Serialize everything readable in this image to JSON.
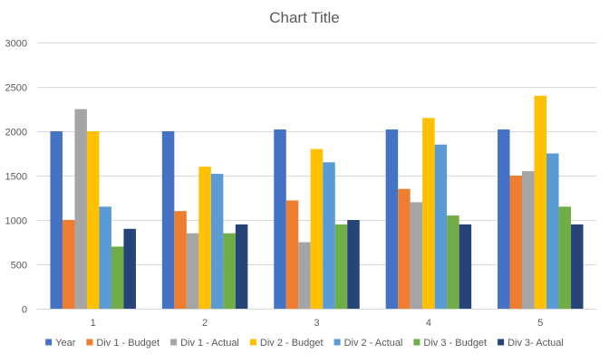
{
  "chart_data": {
    "type": "bar",
    "title": "Chart Title",
    "xlabel": "",
    "ylabel": "",
    "categories": [
      "1",
      "2",
      "3",
      "4",
      "5"
    ],
    "ylim": [
      0,
      3000
    ],
    "yticks": [
      0,
      500,
      1000,
      1500,
      2000,
      2500,
      3000
    ],
    "grid": true,
    "legend_position": "bottom",
    "series": [
      {
        "name": "Year",
        "color": "#4472c4",
        "values": [
          2000,
          2000,
          2020,
          2020,
          2020
        ]
      },
      {
        "name": "Div 1 - Budget",
        "color": "#ed7d31",
        "values": [
          1000,
          1100,
          1220,
          1350,
          1500
        ]
      },
      {
        "name": "Div 1 - Actual",
        "color": "#a5a5a5",
        "values": [
          2250,
          850,
          750,
          1200,
          1550
        ]
      },
      {
        "name": "Div 2 - Budget",
        "color": "#ffc000",
        "values": [
          2000,
          1600,
          1800,
          2150,
          2400
        ]
      },
      {
        "name": "Div 2 - Actual",
        "color": "#5b9bd5",
        "values": [
          1150,
          1520,
          1650,
          1850,
          1750
        ]
      },
      {
        "name": "Div 3 - Budget",
        "color": "#70ad47",
        "values": [
          700,
          850,
          950,
          1050,
          1150
        ]
      },
      {
        "name": "Div 3- Actual",
        "color": "#264478",
        "values": [
          900,
          950,
          1000,
          950,
          950
        ]
      }
    ]
  }
}
